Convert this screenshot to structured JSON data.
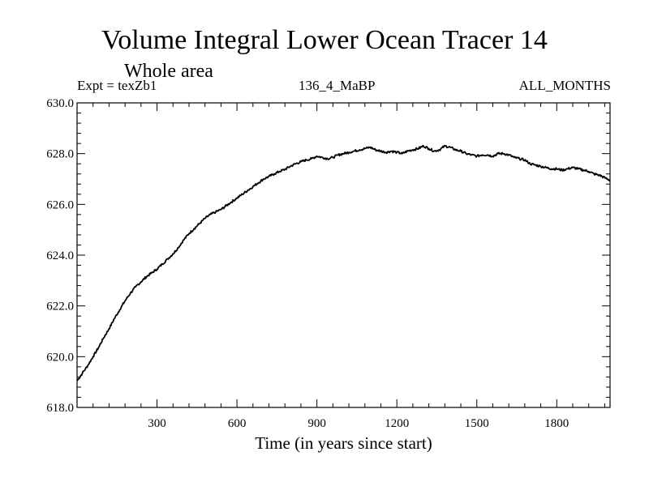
{
  "chart_data": {
    "type": "line",
    "title": "Volume Integral Lower Ocean Tracer 14",
    "subtitle": "Whole area",
    "experiment_label": "Expt = texZb1",
    "period_label": "136_4_MaBP",
    "months_label": "ALL_MONTHS",
    "xlabel": "Time (in years since start)",
    "ylabel": "",
    "xlim": [
      0,
      2000
    ],
    "ylim": [
      618.0,
      630.0
    ],
    "x_ticks": [
      300,
      600,
      900,
      1200,
      1500,
      1800
    ],
    "x_tick_labels": [
      "300",
      "600",
      "900",
      "1200",
      "1500",
      "1800"
    ],
    "y_ticks": [
      618.0,
      620.0,
      622.0,
      624.0,
      626.0,
      628.0,
      630.0
    ],
    "y_tick_labels": [
      "618.0",
      "620.0",
      "622.0",
      "624.0",
      "626.0",
      "628.0",
      "630.0"
    ],
    "grid": false,
    "series": [
      {
        "name": "Volume Integral Lower Ocean Tracer 14",
        "x": [
          0,
          20,
          40,
          60,
          80,
          100,
          120,
          140,
          160,
          180,
          200,
          220,
          240,
          260,
          280,
          300,
          320,
          340,
          360,
          380,
          400,
          420,
          440,
          460,
          480,
          500,
          520,
          540,
          560,
          580,
          600,
          620,
          640,
          660,
          680,
          700,
          720,
          740,
          760,
          780,
          800,
          820,
          840,
          860,
          880,
          900,
          920,
          940,
          960,
          980,
          1000,
          1020,
          1040,
          1060,
          1080,
          1100,
          1120,
          1140,
          1160,
          1180,
          1200,
          1220,
          1240,
          1260,
          1280,
          1300,
          1320,
          1340,
          1360,
          1380,
          1400,
          1420,
          1440,
          1460,
          1480,
          1500,
          1520,
          1540,
          1560,
          1580,
          1600,
          1620,
          1640,
          1660,
          1680,
          1700,
          1720,
          1740,
          1760,
          1780,
          1800,
          1820,
          1840,
          1860,
          1880,
          1900,
          1920,
          1940,
          1960,
          1980,
          2000
        ],
        "values": [
          619.05,
          619.35,
          619.65,
          620.0,
          620.35,
          620.75,
          621.1,
          621.5,
          621.85,
          622.2,
          622.5,
          622.75,
          622.95,
          623.15,
          623.3,
          623.45,
          623.65,
          623.85,
          624.05,
          624.3,
          624.6,
          624.85,
          625.05,
          625.25,
          625.45,
          625.6,
          625.7,
          625.8,
          625.95,
          626.1,
          626.25,
          626.4,
          626.55,
          626.7,
          626.85,
          627.0,
          627.1,
          627.2,
          627.3,
          627.38,
          627.5,
          627.6,
          627.68,
          627.75,
          627.8,
          627.9,
          627.85,
          627.8,
          627.85,
          627.95,
          628.0,
          628.05,
          628.1,
          628.15,
          628.2,
          628.25,
          628.15,
          628.1,
          628.05,
          628.1,
          628.05,
          628.0,
          628.1,
          628.15,
          628.2,
          628.3,
          628.2,
          628.1,
          628.15,
          628.3,
          628.25,
          628.15,
          628.1,
          628.0,
          627.95,
          627.9,
          627.95,
          627.95,
          627.9,
          628.0,
          628.0,
          627.95,
          627.85,
          627.8,
          627.75,
          627.6,
          627.55,
          627.5,
          627.45,
          627.4,
          627.4,
          627.35,
          627.4,
          627.45,
          627.4,
          627.35,
          627.3,
          627.2,
          627.15,
          627.05,
          626.95
        ]
      }
    ]
  }
}
